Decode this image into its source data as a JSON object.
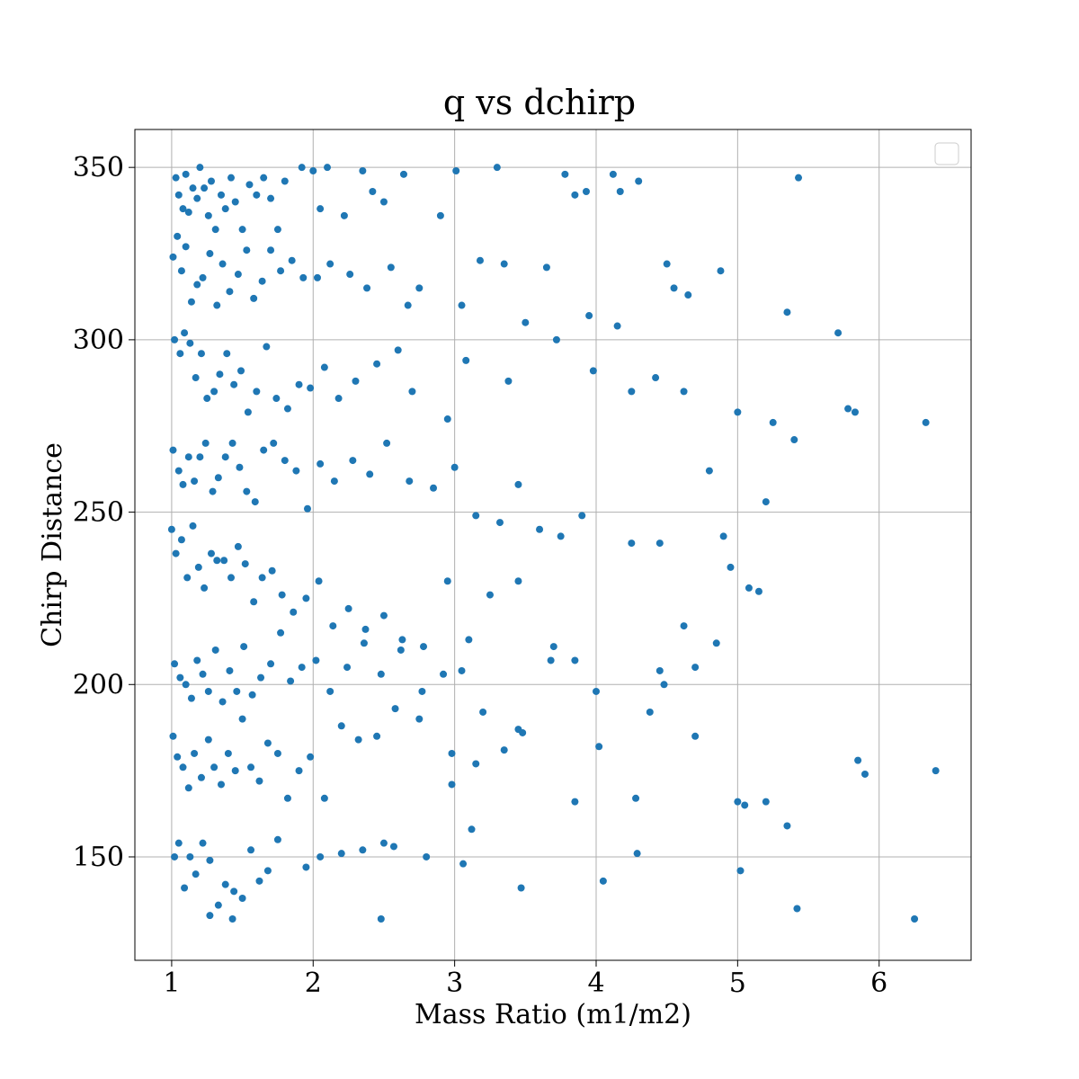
{
  "chart_data": {
    "type": "scatter",
    "title": "q vs dchirp",
    "xlabel": "Mass Ratio (m1/m2)",
    "ylabel": "Chirp Distance",
    "xlim": [
      0.74,
      6.65
    ],
    "ylim": [
      120,
      361
    ],
    "xticks": [
      1,
      2,
      3,
      4,
      5,
      6
    ],
    "yticks": [
      150,
      200,
      250,
      300,
      350
    ],
    "xtick_labels": [
      "1",
      "2",
      "3",
      "4",
      "5",
      "6"
    ],
    "ytick_labels": [
      "150",
      "200",
      "250",
      "300",
      "350"
    ],
    "grid": true,
    "legend": "top-right (empty)",
    "marker_color": "#1f77b4",
    "series": [
      {
        "x": [
          1.03,
          1.05,
          1.08,
          1.1,
          1.12,
          1.15,
          1.18,
          1.2,
          1.23,
          1.26,
          1.28,
          1.31,
          1.35,
          1.38,
          1.42,
          1.45,
          1.5,
          1.55,
          1.6,
          1.65,
          1.7,
          1.75,
          1.8,
          1.92,
          2.0,
          2.05,
          2.1,
          2.22,
          2.35,
          2.42,
          2.5,
          2.64,
          3.01,
          3.3,
          3.78,
          3.85,
          3.93,
          4.12,
          4.17,
          4.3,
          5.43,
          1.01,
          1.04,
          1.07,
          1.1,
          1.14,
          1.18,
          1.22,
          1.27,
          1.32,
          1.36,
          1.41,
          1.47,
          1.53,
          1.58,
          1.64,
          1.7,
          1.77,
          1.85,
          1.93,
          2.03,
          2.12,
          2.26,
          2.38,
          2.55,
          2.67,
          2.75,
          2.9,
          3.05,
          3.18,
          3.35,
          3.5,
          3.65,
          3.95,
          4.15,
          4.5,
          4.55,
          4.65,
          4.88,
          5.35,
          5.71,
          1.02,
          1.06,
          1.09,
          1.13,
          1.17,
          1.21,
          1.25,
          1.3,
          1.34,
          1.39,
          1.44,
          1.49,
          1.54,
          1.6,
          1.67,
          1.74,
          1.82,
          1.9,
          1.98,
          2.08,
          2.18,
          2.3,
          2.45,
          2.6,
          2.7,
          2.95,
          3.08,
          3.38,
          3.72,
          3.98,
          4.25,
          4.42,
          4.62,
          5.0,
          5.25,
          5.78,
          5.83,
          6.33,
          5.4,
          1.01,
          1.05,
          1.08,
          1.12,
          1.16,
          1.2,
          1.24,
          1.29,
          1.33,
          1.38,
          1.43,
          1.48,
          1.53,
          1.59,
          1.65,
          1.72,
          1.8,
          1.88,
          1.96,
          2.05,
          2.15,
          2.28,
          2.4,
          2.52,
          2.68,
          2.85,
          3.0,
          3.15,
          3.32,
          3.45,
          3.6,
          3.75,
          3.9,
          4.25,
          4.45,
          4.8,
          4.9,
          5.2,
          1.0,
          1.03,
          1.07,
          1.11,
          1.15,
          1.19,
          1.23,
          1.28,
          1.32,
          1.37,
          1.42,
          1.47,
          1.52,
          1.58,
          1.64,
          1.71,
          1.78,
          1.86,
          1.95,
          2.04,
          2.14,
          2.25,
          2.37,
          2.5,
          2.63,
          2.78,
          2.95,
          3.1,
          3.25,
          3.45,
          3.7,
          3.85,
          4.48,
          4.95,
          5.08,
          5.15,
          1.02,
          1.06,
          1.1,
          1.14,
          1.18,
          1.22,
          1.26,
          1.31,
          1.36,
          1.41,
          1.46,
          1.51,
          1.57,
          1.63,
          1.7,
          1.77,
          1.84,
          1.92,
          2.02,
          2.12,
          2.24,
          2.36,
          2.48,
          2.62,
          2.77,
          2.92,
          3.05,
          3.2,
          3.45,
          3.68,
          4.0,
          4.45,
          4.62,
          4.7,
          4.85,
          1.01,
          1.04,
          1.08,
          1.12,
          1.16,
          1.21,
          1.26,
          1.3,
          1.35,
          1.4,
          1.45,
          1.5,
          1.56,
          1.62,
          1.68,
          1.75,
          1.82,
          1.9,
          1.98,
          2.08,
          2.2,
          2.32,
          2.45,
          2.58,
          2.75,
          2.98,
          3.15,
          3.35,
          3.48,
          3.85,
          4.02,
          4.28,
          4.38,
          4.7,
          5.0,
          5.05,
          5.2,
          5.35,
          5.85,
          5.9,
          6.4,
          1.02,
          1.05,
          1.09,
          1.13,
          1.17,
          1.22,
          1.27,
          1.33,
          1.38,
          1.44,
          1.5,
          1.56,
          1.62,
          1.68,
          1.75,
          1.95,
          2.05,
          2.2,
          2.35,
          2.5,
          2.57,
          2.8,
          2.98,
          3.06,
          3.12,
          3.47,
          4.05,
          4.29,
          5.02,
          5.42,
          6.25,
          2.48,
          1.27,
          1.43
        ],
        "y": [
          347,
          342,
          338,
          348,
          337,
          344,
          341,
          350,
          344,
          336,
          346,
          332,
          342,
          338,
          347,
          340,
          332,
          345,
          342,
          347,
          341,
          332,
          346,
          350,
          349,
          338,
          350,
          336,
          349,
          343,
          340,
          348,
          349,
          350,
          348,
          342,
          343,
          348,
          343,
          346,
          347,
          324,
          330,
          320,
          327,
          311,
          316,
          318,
          325,
          310,
          322,
          314,
          319,
          326,
          312,
          317,
          326,
          320,
          323,
          318,
          318,
          322,
          319,
          315,
          321,
          310,
          315,
          336,
          310,
          323,
          322,
          305,
          321,
          307,
          304,
          322,
          315,
          313,
          320,
          308,
          302,
          300,
          296,
          302,
          299,
          289,
          296,
          283,
          285,
          290,
          296,
          287,
          291,
          279,
          285,
          298,
          283,
          280,
          287,
          286,
          292,
          283,
          288,
          293,
          297,
          285,
          277,
          294,
          288,
          300,
          291,
          285,
          289,
          285,
          279,
          276,
          280,
          279,
          276,
          271,
          268,
          262,
          258,
          266,
          259,
          266,
          270,
          256,
          260,
          266,
          270,
          263,
          256,
          253,
          268,
          270,
          265,
          262,
          251,
          264,
          259,
          265,
          261,
          270,
          259,
          257,
          263,
          249,
          247,
          258,
          245,
          243,
          249,
          241,
          241,
          262,
          243,
          253,
          245,
          238,
          242,
          231,
          246,
          234,
          228,
          238,
          236,
          236,
          231,
          240,
          235,
          224,
          231,
          233,
          226,
          221,
          225,
          230,
          217,
          222,
          216,
          220,
          213,
          211,
          230,
          213,
          226,
          230,
          211,
          207,
          200,
          234,
          228,
          227,
          206,
          202,
          200,
          196,
          207,
          203,
          198,
          210,
          195,
          204,
          198,
          211,
          197,
          202,
          206,
          215,
          201,
          205,
          207,
          198,
          205,
          212,
          203,
          210,
          198,
          203,
          204,
          192,
          187,
          207,
          198,
          204,
          217,
          205,
          212,
          185,
          179,
          176,
          170,
          180,
          173,
          184,
          176,
          171,
          180,
          175,
          190,
          176,
          172,
          183,
          180,
          167,
          175,
          179,
          167,
          188,
          184,
          185,
          193,
          190,
          180,
          177,
          181,
          186,
          166,
          182,
          167,
          192,
          185,
          166,
          165,
          166,
          159,
          178,
          174,
          175,
          150,
          154,
          141,
          150,
          145,
          154,
          149,
          136,
          142,
          140,
          138,
          152,
          143,
          146,
          155,
          147,
          150,
          151,
          152,
          154,
          153,
          150,
          171,
          148,
          158,
          141,
          143,
          151,
          146,
          135,
          132,
          132,
          133,
          132
        ]
      }
    ]
  }
}
